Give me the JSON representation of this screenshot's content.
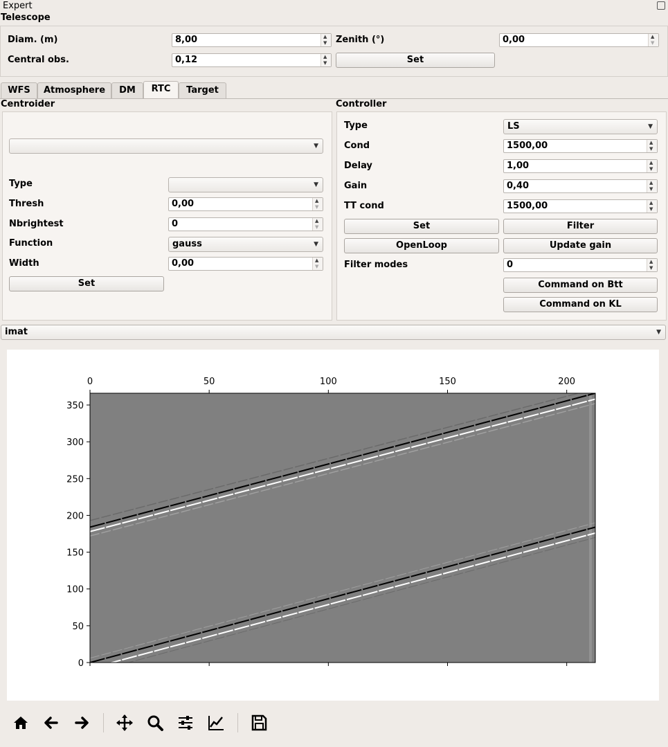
{
  "window": {
    "title": "Expert"
  },
  "telescope": {
    "section_title": "Telescope",
    "diam_label": "Diam. (m)",
    "diam_value": "8,00",
    "zenith_label": "Zenith (°)",
    "zenith_value": "0,00",
    "central_obs_label": "Central obs.",
    "central_obs_value": "0,12",
    "set_label": "Set"
  },
  "tabs": [
    "WFS",
    "Atmosphere",
    "DM",
    "RTC",
    "Target"
  ],
  "active_tab": "RTC",
  "centroider": {
    "title": "Centroider",
    "selector_value": "",
    "type_label": "Type",
    "type_value": "",
    "thresh_label": "Thresh",
    "thresh_value": "0,00",
    "nbrightest_label": "Nbrightest",
    "nbrightest_value": "0",
    "function_label": "Function",
    "function_value": "gauss",
    "width_label": "Width",
    "width_value": "0,00",
    "set_label": "Set"
  },
  "controller": {
    "title": "Controller",
    "type_label": "Type",
    "type_value": "LS",
    "cond_label": "Cond",
    "cond_value": "1500,00",
    "delay_label": "Delay",
    "delay_value": "1,00",
    "gain_label": "Gain",
    "gain_value": "0,40",
    "ttcond_label": "TT cond",
    "ttcond_value": "1500,00",
    "set_label": "Set",
    "filter_label": "Filter",
    "openloop_label": "OpenLoop",
    "update_gain_label": "Update gain",
    "filter_modes_label": "Filter modes",
    "filter_modes_value": "0",
    "cmd_btt_label": "Command on Btt",
    "cmd_kl_label": "Command on KL"
  },
  "plot_selector": {
    "value": "imat"
  },
  "chart_data": {
    "type": "heatmap",
    "title": "",
    "xlabel": "",
    "ylabel": "",
    "xlim": [
      0,
      212
    ],
    "ylim": [
      0,
      366
    ],
    "xticks": [
      0,
      50,
      100,
      150,
      200
    ],
    "yticks": [
      0,
      50,
      100,
      150,
      200,
      250,
      300,
      350
    ],
    "x_axis_position": "top",
    "background_value_color": "#808080",
    "bands": [
      {
        "block": "lower",
        "x": [
          0,
          212
        ],
        "y": [
          0,
          184
        ],
        "color": "#000000"
      },
      {
        "block": "lower",
        "x": [
          0,
          212
        ],
        "y": [
          -8,
          176
        ],
        "color": "#ffffff"
      },
      {
        "block": "upper",
        "x": [
          0,
          212
        ],
        "y": [
          184,
          366
        ],
        "color": "#000000"
      },
      {
        "block": "upper",
        "x": [
          0,
          212
        ],
        "y": [
          178,
          358
        ],
        "color": "#ffffff"
      }
    ]
  },
  "toolbar": {
    "icons": [
      "home-icon",
      "back-arrow-icon",
      "forward-arrow-icon",
      "pan-icon",
      "zoom-icon",
      "subplots-config-icon",
      "edit-curves-icon",
      "save-icon"
    ]
  },
  "colors": {
    "window_bg": "#efebe7",
    "panel_bg": "#f7f4f1",
    "plot_bg": "#ffffff"
  }
}
